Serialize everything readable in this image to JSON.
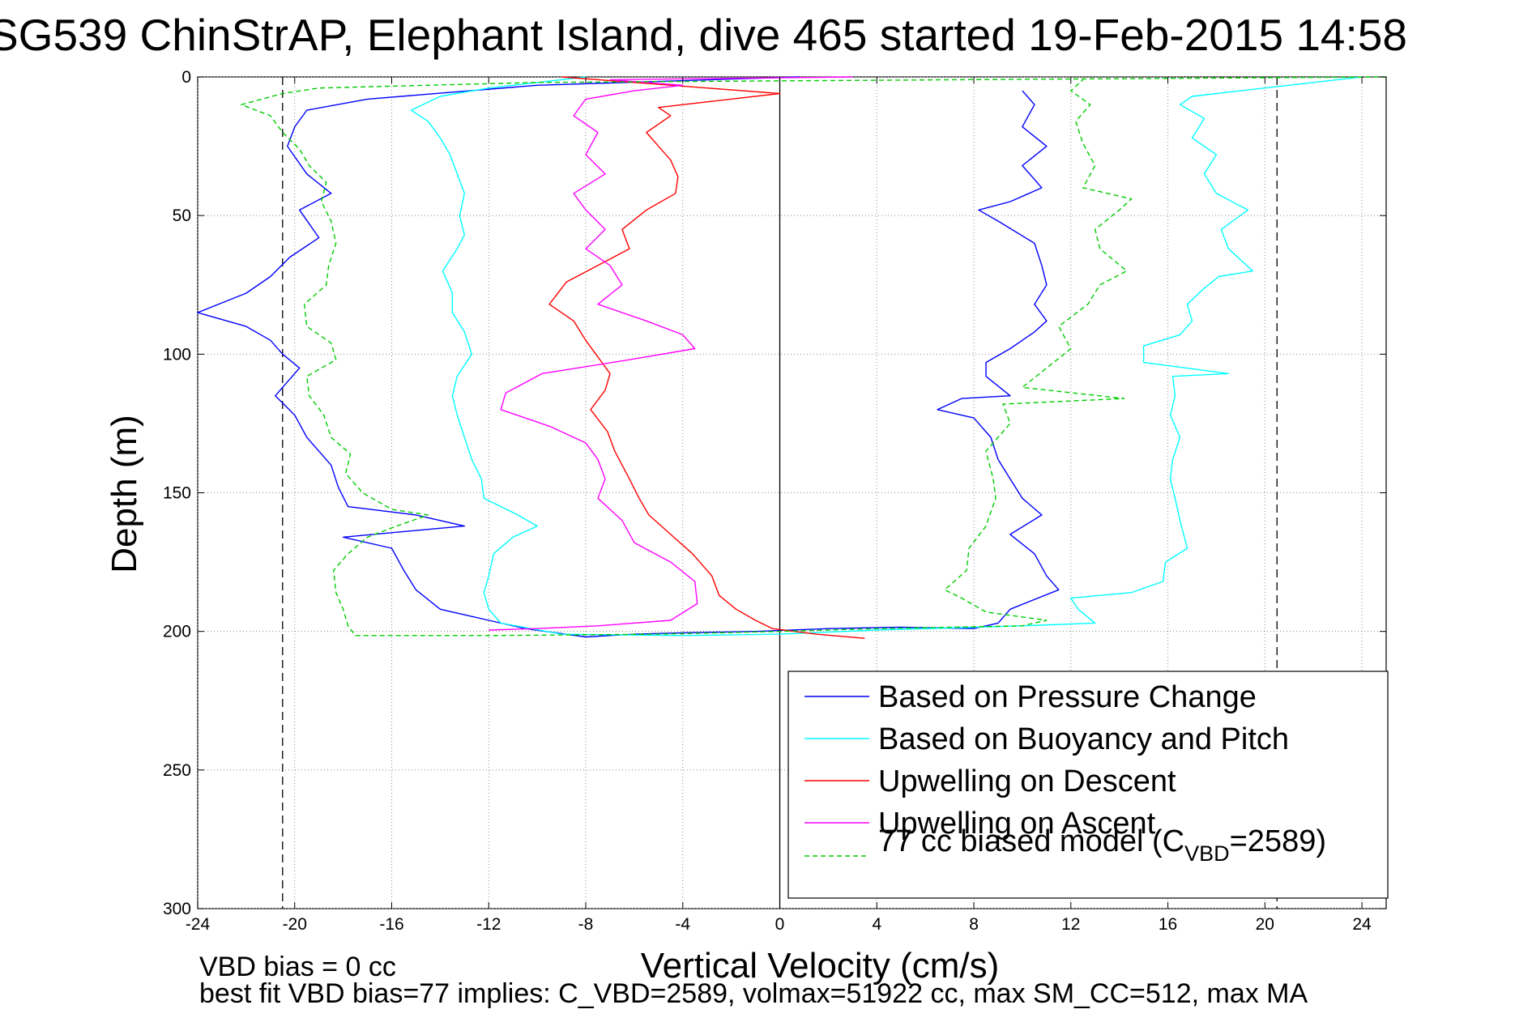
{
  "chart_data": {
    "type": "line",
    "title": "SG539 ChinStrAP, Elephant Island, dive 465 started 19-Feb-2015 14:58",
    "xlabel": "Vertical Velocity (cm/s)",
    "ylabel": "Depth (m)",
    "xlim": [
      -24,
      25
    ],
    "ylim": [
      0,
      300
    ],
    "y_reversed": true,
    "grid": true,
    "x_ticks": [
      "-24",
      "-20",
      "-16",
      "-12",
      "-8",
      "-4",
      "0",
      "4",
      "8",
      "12",
      "16",
      "20",
      "24"
    ],
    "y_ticks": [
      "0",
      "50",
      "100",
      "150",
      "200",
      "250",
      "300"
    ],
    "reference_lines": [
      {
        "x": 0,
        "style": "solid"
      },
      {
        "x": -20.5,
        "style": "dashed"
      },
      {
        "x": 20.5,
        "style": "dashed"
      }
    ],
    "legend": {
      "position": "bottom-right",
      "entries": [
        {
          "label": "Based on Pressure Change",
          "color": "#0000ff",
          "dash": "none"
        },
        {
          "label": "Based on Buoyancy and Pitch",
          "color": "#00ffff",
          "dash": "none"
        },
        {
          "label": "Upwelling on Descent",
          "color": "#ff0000",
          "dash": "none"
        },
        {
          "label": "Upwelling on Ascent",
          "color": "#ff00ff",
          "dash": "none"
        },
        {
          "label_prefix": "77 cc biased model (C",
          "label_sub": "VBD",
          "label_suffix": "=2589)",
          "color": "#00cc00",
          "dash": "6,4"
        }
      ]
    },
    "series": [
      {
        "name": "Based on Pressure Change",
        "color": "#0000ff",
        "dash": "none",
        "points": [
          [
            0.8,
            0
          ],
          [
            -10,
            3
          ],
          [
            -17,
            8
          ],
          [
            -19.5,
            12
          ],
          [
            -20,
            18
          ],
          [
            -20.3,
            25
          ],
          [
            -19.5,
            35
          ],
          [
            -18.5,
            42
          ],
          [
            -19.8,
            48
          ],
          [
            -19,
            58
          ],
          [
            -20.2,
            65
          ],
          [
            -21,
            72
          ],
          [
            -22,
            78
          ],
          [
            -24,
            85
          ],
          [
            -22,
            90
          ],
          [
            -21,
            95
          ],
          [
            -20.5,
            100
          ],
          [
            -19.8,
            105
          ],
          [
            -20.8,
            115
          ],
          [
            -20,
            122
          ],
          [
            -19.5,
            130
          ],
          [
            -18.5,
            140
          ],
          [
            -18.2,
            148
          ],
          [
            -17.8,
            155
          ],
          [
            -15,
            158
          ],
          [
            -13,
            162
          ],
          [
            -18,
            166
          ],
          [
            -16,
            170
          ],
          [
            -15.5,
            178
          ],
          [
            -15,
            185
          ],
          [
            -14,
            192
          ],
          [
            -12,
            196
          ],
          [
            -10.5,
            199
          ],
          [
            -8,
            202
          ],
          [
            -6,
            201
          ],
          [
            -4,
            200.5
          ],
          [
            -1,
            200
          ],
          [
            2,
            199
          ],
          [
            5,
            198.5
          ],
          [
            8,
            199
          ],
          [
            9,
            197
          ],
          [
            9.5,
            192
          ],
          [
            11.5,
            185
          ],
          [
            11,
            180
          ],
          [
            10.5,
            172
          ],
          [
            9.5,
            165
          ],
          [
            10.8,
            158
          ],
          [
            10,
            152
          ],
          [
            9.5,
            145
          ],
          [
            9,
            138
          ],
          [
            8.7,
            130
          ],
          [
            8,
            123
          ],
          [
            6.5,
            120
          ],
          [
            7.5,
            116
          ],
          [
            9.5,
            115
          ],
          [
            8.5,
            108
          ],
          [
            8.5,
            103
          ],
          [
            9.5,
            98
          ],
          [
            10.5,
            92
          ],
          [
            11,
            88
          ],
          [
            10.5,
            82
          ],
          [
            11,
            75
          ],
          [
            10.8,
            68
          ],
          [
            10.5,
            60
          ],
          [
            9,
            52
          ],
          [
            8.2,
            48
          ],
          [
            9.5,
            45
          ],
          [
            10.8,
            40
          ],
          [
            10,
            32
          ],
          [
            11,
            25
          ],
          [
            10,
            18
          ],
          [
            10.5,
            10
          ],
          [
            10,
            5
          ]
        ]
      },
      {
        "name": "Based on Buoyancy and Pitch",
        "color": "#00ffff",
        "dash": "none",
        "points": [
          [
            -8,
            0
          ],
          [
            -12,
            4
          ],
          [
            -14,
            7
          ],
          [
            -15.2,
            12
          ],
          [
            -14.5,
            16
          ],
          [
            -14,
            22
          ],
          [
            -13.6,
            28
          ],
          [
            -13.3,
            35
          ],
          [
            -13,
            42
          ],
          [
            -13.2,
            50
          ],
          [
            -13,
            57
          ],
          [
            -13.3,
            62
          ],
          [
            -13.9,
            70
          ],
          [
            -13.5,
            78
          ],
          [
            -13.5,
            85
          ],
          [
            -13,
            92
          ],
          [
            -12.7,
            100
          ],
          [
            -13.3,
            108
          ],
          [
            -13.5,
            115
          ],
          [
            -13.3,
            122
          ],
          [
            -13,
            130
          ],
          [
            -12.7,
            138
          ],
          [
            -12.3,
            145
          ],
          [
            -12.2,
            152
          ],
          [
            -10.8,
            158
          ],
          [
            -10,
            162
          ],
          [
            -11,
            166
          ],
          [
            -11.8,
            172
          ],
          [
            -12,
            180
          ],
          [
            -12.2,
            186
          ],
          [
            -12,
            192
          ],
          [
            -11.5,
            197
          ],
          [
            -9,
            201
          ],
          [
            -4,
            201.5
          ],
          [
            0,
            201
          ],
          [
            4,
            199.5
          ],
          [
            10,
            198
          ],
          [
            13,
            197
          ],
          [
            12.3,
            192
          ],
          [
            12,
            188
          ],
          [
            14.5,
            186
          ],
          [
            15.8,
            182
          ],
          [
            15.9,
            175
          ],
          [
            16.8,
            170
          ],
          [
            16.5,
            160
          ],
          [
            16.3,
            152
          ],
          [
            16.1,
            145
          ],
          [
            16.2,
            138
          ],
          [
            16.5,
            130
          ],
          [
            16.1,
            122
          ],
          [
            16.3,
            115
          ],
          [
            16.2,
            108
          ],
          [
            18.5,
            107
          ],
          [
            15,
            103
          ],
          [
            15,
            97
          ],
          [
            16.5,
            93
          ],
          [
            17,
            88
          ],
          [
            16.8,
            82
          ],
          [
            17.4,
            77
          ],
          [
            18.1,
            72
          ],
          [
            19.5,
            70
          ],
          [
            18.5,
            62
          ],
          [
            18.2,
            55
          ],
          [
            19.3,
            48
          ],
          [
            18,
            42
          ],
          [
            17.5,
            35
          ],
          [
            18,
            28
          ],
          [
            17,
            22
          ],
          [
            17.5,
            15
          ],
          [
            16.5,
            10
          ],
          [
            17,
            7
          ],
          [
            22,
            2
          ],
          [
            24,
            0
          ]
        ]
      },
      {
        "name": "Upwelling on Descent",
        "color": "#ff0000",
        "dash": "none",
        "points": [
          [
            -9,
            0
          ],
          [
            -6,
            2
          ],
          [
            -3,
            4
          ],
          [
            0,
            6
          ],
          [
            -3,
            9
          ],
          [
            -5,
            11
          ],
          [
            -4.5,
            14
          ],
          [
            -5.5,
            20
          ],
          [
            -5,
            25
          ],
          [
            -4.5,
            30
          ],
          [
            -4.2,
            36
          ],
          [
            -4.3,
            42
          ],
          [
            -5.5,
            48
          ],
          [
            -6.5,
            55
          ],
          [
            -6.2,
            62
          ],
          [
            -7.5,
            68
          ],
          [
            -8.8,
            74
          ],
          [
            -9.5,
            82
          ],
          [
            -8.5,
            88
          ],
          [
            -8,
            95
          ],
          [
            -7.5,
            101
          ],
          [
            -7,
            107
          ],
          [
            -7.2,
            113
          ],
          [
            -7.8,
            120
          ],
          [
            -7.1,
            128
          ],
          [
            -6.8,
            135
          ],
          [
            -6.2,
            145
          ],
          [
            -5.8,
            152
          ],
          [
            -5.4,
            158
          ],
          [
            -4.5,
            165
          ],
          [
            -3.6,
            172
          ],
          [
            -2.8,
            180
          ],
          [
            -2.5,
            187
          ],
          [
            -1.8,
            192
          ],
          [
            -1,
            196
          ],
          [
            -0.3,
            199
          ],
          [
            1.5,
            201
          ],
          [
            3.5,
            202.5
          ]
        ]
      },
      {
        "name": "Upwelling on Ascent",
        "color": "#ff00ff",
        "dash": "none",
        "points": [
          [
            3,
            0
          ],
          [
            -7,
            1
          ],
          [
            -4,
            3
          ],
          [
            -6,
            5
          ],
          [
            -8,
            8
          ],
          [
            -8.5,
            14
          ],
          [
            -7.5,
            20
          ],
          [
            -8,
            28
          ],
          [
            -7.2,
            35
          ],
          [
            -8.5,
            42
          ],
          [
            -8,
            48
          ],
          [
            -7.2,
            55
          ],
          [
            -8,
            62
          ],
          [
            -7,
            68
          ],
          [
            -6.5,
            75
          ],
          [
            -7.5,
            82
          ],
          [
            -5.5,
            88
          ],
          [
            -4,
            93
          ],
          [
            -3.5,
            98
          ],
          [
            -6.2,
            102
          ],
          [
            -9.8,
            107
          ],
          [
            -11.3,
            114
          ],
          [
            -11.5,
            120
          ],
          [
            -9.5,
            126
          ],
          [
            -8,
            132
          ],
          [
            -7.5,
            138
          ],
          [
            -7.2,
            145
          ],
          [
            -7.5,
            152
          ],
          [
            -6.5,
            160
          ],
          [
            -6,
            168
          ],
          [
            -4.5,
            175
          ],
          [
            -3.5,
            182
          ],
          [
            -3.4,
            190
          ],
          [
            -4.5,
            196
          ],
          [
            -7.5,
            198
          ],
          [
            -10,
            199
          ],
          [
            -12,
            199.5
          ]
        ]
      },
      {
        "name": "77 cc biased model",
        "color": "#00cc00",
        "dash": "6,4",
        "points": [
          [
            25,
            0
          ],
          [
            -10,
            2
          ],
          [
            -19,
            4
          ],
          [
            -20.5,
            6
          ],
          [
            -22.2,
            10
          ],
          [
            -21,
            14
          ],
          [
            -20.5,
            20
          ],
          [
            -19.8,
            26
          ],
          [
            -19.4,
            32
          ],
          [
            -18.7,
            38
          ],
          [
            -18.9,
            45
          ],
          [
            -18.5,
            52
          ],
          [
            -18.3,
            60
          ],
          [
            -18.6,
            68
          ],
          [
            -18.7,
            75
          ],
          [
            -19.6,
            82
          ],
          [
            -19.5,
            90
          ],
          [
            -18.5,
            96
          ],
          [
            -18.3,
            102
          ],
          [
            -19.5,
            108
          ],
          [
            -19.4,
            115
          ],
          [
            -18.8,
            122
          ],
          [
            -18.5,
            130
          ],
          [
            -17.7,
            136
          ],
          [
            -17.9,
            143
          ],
          [
            -17.2,
            150
          ],
          [
            -16,
            156
          ],
          [
            -14.5,
            158
          ],
          [
            -15.8,
            162
          ],
          [
            -17,
            166
          ],
          [
            -17.8,
            172
          ],
          [
            -18.4,
            178
          ],
          [
            -18.3,
            186
          ],
          [
            -18,
            192
          ],
          [
            -17.8,
            198
          ],
          [
            -17.5,
            201.5
          ],
          [
            -12,
            201.5
          ],
          [
            -5,
            201
          ],
          [
            0,
            200
          ],
          [
            4,
            199
          ],
          [
            10,
            198
          ],
          [
            11,
            196
          ],
          [
            8.5,
            193
          ],
          [
            7.5,
            188
          ],
          [
            6.8,
            185
          ],
          [
            7.7,
            178
          ],
          [
            7.8,
            170
          ],
          [
            8.5,
            162
          ],
          [
            8.9,
            152
          ],
          [
            8.8,
            145
          ],
          [
            8.5,
            135
          ],
          [
            9.5,
            125
          ],
          [
            9.2,
            118
          ],
          [
            14.2,
            116
          ],
          [
            10,
            112
          ],
          [
            11,
            105
          ],
          [
            12,
            98
          ],
          [
            11.5,
            90
          ],
          [
            12.7,
            82
          ],
          [
            13.2,
            75
          ],
          [
            14.3,
            70
          ],
          [
            13.2,
            62
          ],
          [
            13,
            55
          ],
          [
            14,
            48
          ],
          [
            14.5,
            44
          ],
          [
            12.5,
            40
          ],
          [
            13,
            32
          ],
          [
            12.5,
            24
          ],
          [
            12.2,
            16
          ],
          [
            12.8,
            10
          ],
          [
            12,
            5
          ],
          [
            12.5,
            1
          ]
        ]
      }
    ]
  },
  "notes": {
    "line1": "VBD bias = 0 cc",
    "line2": "best fit VBD bias=77 implies: C_VBD=2589, volmax=51922 cc, max SM_CC=512, max MA"
  }
}
